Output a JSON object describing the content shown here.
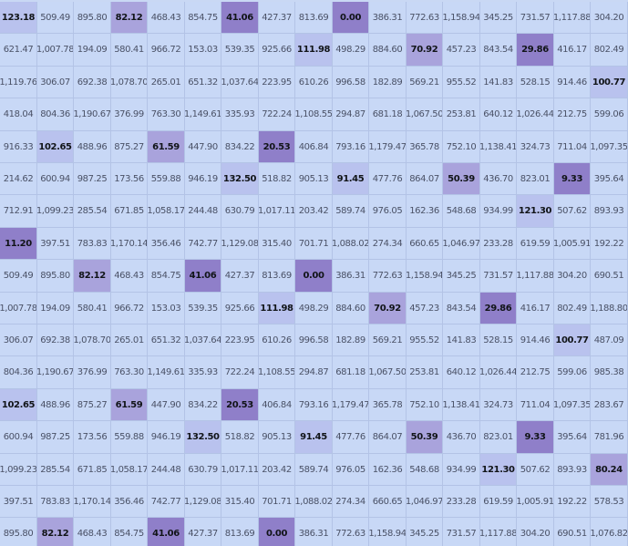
{
  "chart_data": {
    "type": "heatmap",
    "title": "",
    "xlabel": "",
    "ylabel": "",
    "colors": {
      "base": "#c8d8f6",
      "low_intense": "#8f7fc9",
      "low_mid": "#a9a3dc",
      "low_light": "#b9c2ee"
    },
    "rows": [
      [
        "123.18",
        "509.49",
        "895.80",
        "82.12",
        "468.43",
        "854.75",
        "41.06",
        "427.37",
        "813.69",
        "0.00",
        "386.31",
        "772.63",
        "1,158.94",
        "345.25",
        "731.57",
        "1,117.88",
        "304.20"
      ],
      [
        "621.47",
        "1,007.78",
        "194.09",
        "580.41",
        "966.72",
        "153.03",
        "539.35",
        "925.66",
        "111.98",
        "498.29",
        "884.60",
        "70.92",
        "457.23",
        "843.54",
        "29.86",
        "416.17",
        "802.49"
      ],
      [
        "1,119.76",
        "306.07",
        "692.38",
        "1,078.70",
        "265.01",
        "651.32",
        "1,037.64",
        "223.95",
        "610.26",
        "996.58",
        "182.89",
        "569.21",
        "955.52",
        "141.83",
        "528.15",
        "914.46",
        "100.77"
      ],
      [
        "418.04",
        "804.36",
        "1,190.67",
        "376.99",
        "763.30",
        "1,149.61",
        "335.93",
        "722.24",
        "1,108.55",
        "294.87",
        "681.18",
        "1,067.50",
        "253.81",
        "640.12",
        "1,026.44",
        "212.75",
        "599.06"
      ],
      [
        "916.33",
        "102.65",
        "488.96",
        "875.27",
        "61.59",
        "447.90",
        "834.22",
        "20.53",
        "406.84",
        "793.16",
        "1,179.47",
        "365.78",
        "752.10",
        "1,138.41",
        "324.73",
        "711.04",
        "1,097.35"
      ],
      [
        "214.62",
        "600.94",
        "987.25",
        "173.56",
        "559.88",
        "946.19",
        "132.50",
        "518.82",
        "905.13",
        "91.45",
        "477.76",
        "864.07",
        "50.39",
        "436.70",
        "823.01",
        "9.33",
        "395.64"
      ],
      [
        "712.91",
        "1,099.23",
        "285.54",
        "671.85",
        "1,058.17",
        "244.48",
        "630.79",
        "1,017.11",
        "203.42",
        "589.74",
        "976.05",
        "162.36",
        "548.68",
        "934.99",
        "121.30",
        "507.62",
        "893.93"
      ],
      [
        "11.20",
        "397.51",
        "783.83",
        "1,170.14",
        "356.46",
        "742.77",
        "1,129.08",
        "315.40",
        "701.71",
        "1,088.02",
        "274.34",
        "660.65",
        "1,046.97",
        "233.28",
        "619.59",
        "1,005.91",
        "192.22"
      ],
      [
        "509.49",
        "895.80",
        "82.12",
        "468.43",
        "854.75",
        "41.06",
        "427.37",
        "813.69",
        "0.00",
        "386.31",
        "772.63",
        "1,158.94",
        "345.25",
        "731.57",
        "1,117.88",
        "304.20",
        "690.51"
      ],
      [
        "1,007.78",
        "194.09",
        "580.41",
        "966.72",
        "153.03",
        "539.35",
        "925.66",
        "111.98",
        "498.29",
        "884.60",
        "70.92",
        "457.23",
        "843.54",
        "29.86",
        "416.17",
        "802.49",
        "1,188.80"
      ],
      [
        "306.07",
        "692.38",
        "1,078.70",
        "265.01",
        "651.32",
        "1,037.64",
        "223.95",
        "610.26",
        "996.58",
        "182.89",
        "569.21",
        "955.52",
        "141.83",
        "528.15",
        "914.46",
        "100.77",
        "487.09"
      ],
      [
        "804.36",
        "1,190.67",
        "376.99",
        "763.30",
        "1,149.61",
        "335.93",
        "722.24",
        "1,108.55",
        "294.87",
        "681.18",
        "1,067.50",
        "253.81",
        "640.12",
        "1,026.44",
        "212.75",
        "599.06",
        "985.38"
      ],
      [
        "102.65",
        "488.96",
        "875.27",
        "61.59",
        "447.90",
        "834.22",
        "20.53",
        "406.84",
        "793.16",
        "1,179.47",
        "365.78",
        "752.10",
        "1,138.41",
        "324.73",
        "711.04",
        "1,097.35",
        "283.67"
      ],
      [
        "600.94",
        "987.25",
        "173.56",
        "559.88",
        "946.19",
        "132.50",
        "518.82",
        "905.13",
        "91.45",
        "477.76",
        "864.07",
        "50.39",
        "436.70",
        "823.01",
        "9.33",
        "395.64",
        "781.96"
      ],
      [
        "1,099.23",
        "285.54",
        "671.85",
        "1,058.17",
        "244.48",
        "630.79",
        "1,017.11",
        "203.42",
        "589.74",
        "976.05",
        "162.36",
        "548.68",
        "934.99",
        "121.30",
        "507.62",
        "893.93",
        "80.24"
      ],
      [
        "397.51",
        "783.83",
        "1,170.14",
        "356.46",
        "742.77",
        "1,129.08",
        "315.40",
        "701.71",
        "1,088.02",
        "274.34",
        "660.65",
        "1,046.97",
        "233.28",
        "619.59",
        "1,005.91",
        "192.22",
        "578.53"
      ],
      [
        "895.80",
        "82.12",
        "468.43",
        "854.75",
        "41.06",
        "427.37",
        "813.69",
        "0.00",
        "386.31",
        "772.63",
        "1,158.94",
        "345.25",
        "731.57",
        "1,117.88",
        "304.20",
        "690.51",
        "1,076.82"
      ]
    ]
  }
}
